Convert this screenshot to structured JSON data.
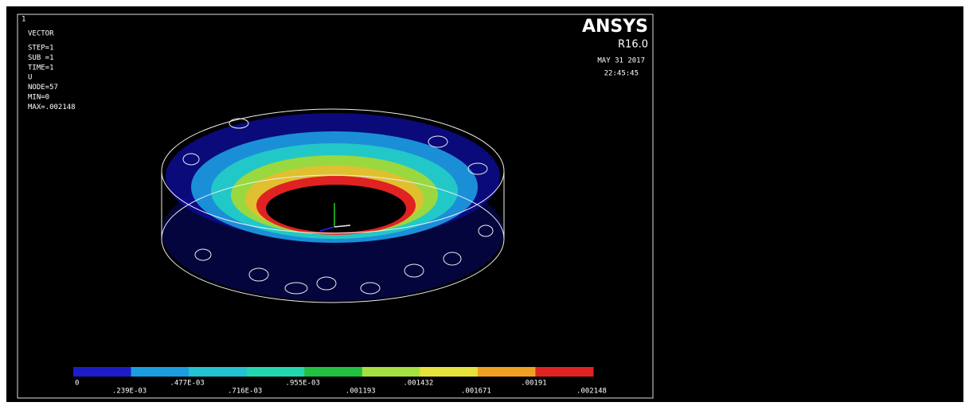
{
  "header": {
    "window_number": "1",
    "plot_type": "VECTOR",
    "info": [
      "STEP=1",
      "SUB =1",
      "TIME=1",
      "U",
      "NODE=57",
      "MIN=0",
      "MAX=.002148"
    ]
  },
  "brand": {
    "name": "ANSYS",
    "version": "R16.0",
    "date": "MAY 31 2017",
    "time": "22:45:45"
  },
  "legend": {
    "colors": [
      "#1c1cc8",
      "#1a9ee0",
      "#22c2d2",
      "#22d6b0",
      "#22c040",
      "#a6e040",
      "#e6e23c",
      "#f0a020",
      "#e02222"
    ],
    "labels": [
      "0",
      ".239E-03",
      ".477E-03",
      ".716E-03",
      ".955E-03",
      ".001193",
      ".001432",
      ".001671",
      ".00191",
      ".002148"
    ]
  }
}
